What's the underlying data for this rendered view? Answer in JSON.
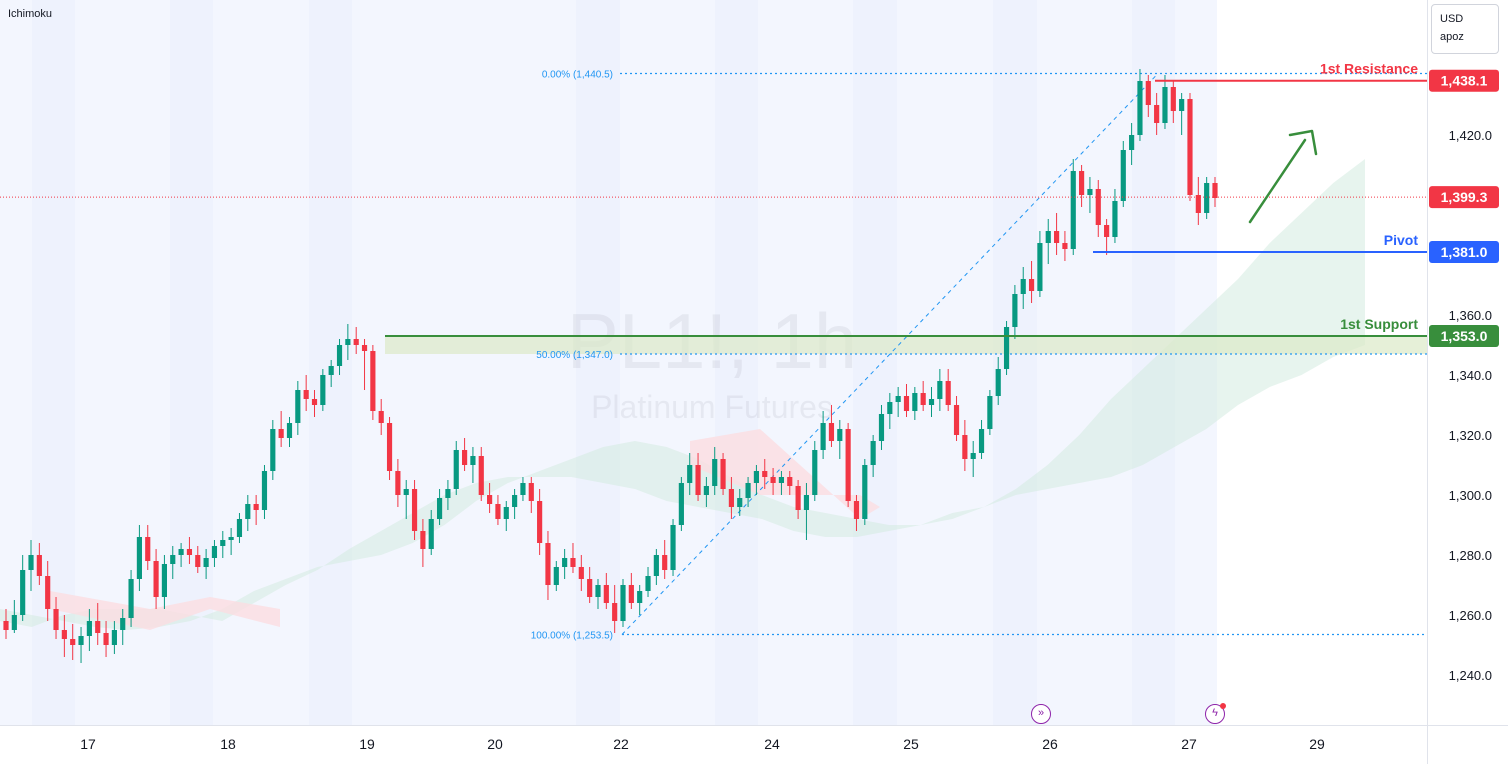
{
  "indicator_label": "Ichimoku",
  "currency": {
    "code": "USD",
    "sub": "apoz"
  },
  "watermark": {
    "symbol": "PL1!, 1h",
    "name": "Platinum Futures"
  },
  "colors": {
    "up": "#089981",
    "down": "#f23645",
    "resistance": "#f23645",
    "pivot": "#2962ff",
    "support": "#388e3c",
    "fib": "#2196f3",
    "arrow": "#388e3c",
    "session_band": "#eef2fd",
    "cloud_bull": "#d4ebe0",
    "cloud_bear": "#fbdde1",
    "grid_text": "#131722"
  },
  "icons": {
    "dividend": "arrow-circle-icon",
    "earnings": "lightning-circle-icon"
  },
  "chart_data": {
    "type": "candlestick",
    "symbol": "PL1!",
    "interval": "1h",
    "y_axis": {
      "ticks": [
        1240.0,
        1260.0,
        1280.0,
        1300.0,
        1320.0,
        1340.0,
        1360.0,
        1420.0
      ],
      "tick_labels": [
        "1,240.0",
        "1,260.0",
        "1,280.0",
        "1,300.0",
        "1,320.0",
        "1,340.0",
        "1,360.0",
        "1,420.0"
      ],
      "range": [
        1225,
        1460
      ]
    },
    "x_axis": {
      "tick_labels": [
        "17",
        "18",
        "19",
        "20",
        "22",
        "24",
        "25",
        "26",
        "27",
        "29"
      ]
    },
    "levels": [
      {
        "name": "1st Resistance",
        "value": 1438.1,
        "label": "1,438.1",
        "color": "#f23645"
      },
      {
        "name": "Pivot",
        "value": 1381.0,
        "label": "1,381.0",
        "color": "#2962ff"
      },
      {
        "name": "1st Support",
        "value": 1353.0,
        "label": "1,353.0",
        "color": "#388e3c"
      }
    ],
    "last_price": {
      "value": 1399.3,
      "label": "1,399.3"
    },
    "fibonacci": [
      {
        "label": "0.00% (1,440.5)",
        "value": 1440.5
      },
      {
        "label": "50.00% (1,347.0)",
        "value": 1347.0
      },
      {
        "label": "100.00% (1,253.5)",
        "value": 1253.5
      }
    ],
    "candles": [
      [
        1258,
        1262,
        1252,
        1255
      ],
      [
        1255,
        1265,
        1254,
        1260
      ],
      [
        1260,
        1280,
        1258,
        1275
      ],
      [
        1275,
        1285,
        1268,
        1280
      ],
      [
        1280,
        1284,
        1270,
        1273
      ],
      [
        1273,
        1278,
        1258,
        1262
      ],
      [
        1262,
        1266,
        1252,
        1255
      ],
      [
        1255,
        1260,
        1246,
        1252
      ],
      [
        1252,
        1257,
        1245,
        1250
      ],
      [
        1250,
        1256,
        1244,
        1253
      ],
      [
        1253,
        1262,
        1248,
        1258
      ],
      [
        1258,
        1264,
        1250,
        1254
      ],
      [
        1254,
        1258,
        1246,
        1250
      ],
      [
        1250,
        1258,
        1247,
        1255
      ],
      [
        1255,
        1262,
        1250,
        1259
      ],
      [
        1259,
        1275,
        1256,
        1272
      ],
      [
        1272,
        1290,
        1268,
        1286
      ],
      [
        1286,
        1290,
        1275,
        1278
      ],
      [
        1278,
        1282,
        1262,
        1266
      ],
      [
        1266,
        1280,
        1262,
        1277
      ],
      [
        1277,
        1283,
        1272,
        1280
      ],
      [
        1280,
        1284,
        1276,
        1282
      ],
      [
        1282,
        1286,
        1277,
        1280
      ],
      [
        1280,
        1283,
        1274,
        1276
      ],
      [
        1276,
        1282,
        1272,
        1279
      ],
      [
        1279,
        1285,
        1276,
        1283
      ],
      [
        1283,
        1288,
        1279,
        1285
      ],
      [
        1285,
        1289,
        1280,
        1286
      ],
      [
        1286,
        1294,
        1284,
        1292
      ],
      [
        1292,
        1300,
        1288,
        1297
      ],
      [
        1297,
        1300,
        1290,
        1295
      ],
      [
        1295,
        1310,
        1292,
        1308
      ],
      [
        1308,
        1325,
        1305,
        1322
      ],
      [
        1322,
        1328,
        1316,
        1319
      ],
      [
        1319,
        1326,
        1316,
        1324
      ],
      [
        1324,
        1338,
        1320,
        1335
      ],
      [
        1335,
        1340,
        1328,
        1332
      ],
      [
        1332,
        1335,
        1326,
        1330
      ],
      [
        1330,
        1342,
        1328,
        1340
      ],
      [
        1340,
        1345,
        1336,
        1343
      ],
      [
        1343,
        1352,
        1340,
        1350
      ],
      [
        1350,
        1357,
        1345,
        1352
      ],
      [
        1352,
        1356,
        1347,
        1350
      ],
      [
        1350,
        1352,
        1335,
        1348
      ],
      [
        1348,
        1350,
        1325,
        1328
      ],
      [
        1328,
        1332,
        1320,
        1324
      ],
      [
        1324,
        1326,
        1305,
        1308
      ],
      [
        1308,
        1312,
        1296,
        1300
      ],
      [
        1300,
        1305,
        1292,
        1302
      ],
      [
        1302,
        1305,
        1285,
        1288
      ],
      [
        1288,
        1292,
        1276,
        1282
      ],
      [
        1282,
        1295,
        1280,
        1292
      ],
      [
        1292,
        1302,
        1290,
        1299
      ],
      [
        1299,
        1305,
        1295,
        1302
      ],
      [
        1302,
        1318,
        1300,
        1315
      ],
      [
        1315,
        1319,
        1308,
        1310
      ],
      [
        1310,
        1316,
        1304,
        1313
      ],
      [
        1313,
        1316,
        1298,
        1300
      ],
      [
        1300,
        1304,
        1294,
        1297
      ],
      [
        1297,
        1300,
        1290,
        1292
      ],
      [
        1292,
        1298,
        1288,
        1296
      ],
      [
        1296,
        1302,
        1292,
        1300
      ],
      [
        1300,
        1306,
        1298,
        1304
      ],
      [
        1304,
        1306,
        1294,
        1298
      ],
      [
        1298,
        1302,
        1280,
        1284
      ],
      [
        1284,
        1288,
        1265,
        1270
      ],
      [
        1270,
        1278,
        1268,
        1276
      ],
      [
        1276,
        1282,
        1272,
        1279
      ],
      [
        1279,
        1284,
        1274,
        1276
      ],
      [
        1276,
        1280,
        1268,
        1272
      ],
      [
        1272,
        1276,
        1264,
        1266
      ],
      [
        1266,
        1272,
        1262,
        1270
      ],
      [
        1270,
        1274,
        1262,
        1264
      ],
      [
        1264,
        1270,
        1254,
        1258
      ],
      [
        1258,
        1272,
        1256,
        1270
      ],
      [
        1270,
        1274,
        1262,
        1264
      ],
      [
        1264,
        1270,
        1260,
        1268
      ],
      [
        1268,
        1276,
        1266,
        1273
      ],
      [
        1273,
        1282,
        1270,
        1280
      ],
      [
        1280,
        1285,
        1272,
        1275
      ],
      [
        1275,
        1292,
        1273,
        1290
      ],
      [
        1290,
        1306,
        1288,
        1304
      ],
      [
        1304,
        1314,
        1300,
        1310
      ],
      [
        1310,
        1314,
        1298,
        1300
      ],
      [
        1300,
        1306,
        1296,
        1303
      ],
      [
        1303,
        1316,
        1300,
        1312
      ],
      [
        1312,
        1314,
        1300,
        1302
      ],
      [
        1302,
        1306,
        1292,
        1296
      ],
      [
        1296,
        1302,
        1293,
        1299
      ],
      [
        1299,
        1306,
        1296,
        1304
      ],
      [
        1304,
        1310,
        1300,
        1308
      ],
      [
        1308,
        1312,
        1302,
        1306
      ],
      [
        1306,
        1309,
        1300,
        1304
      ],
      [
        1304,
        1308,
        1300,
        1306
      ],
      [
        1306,
        1308,
        1300,
        1303
      ],
      [
        1303,
        1305,
        1292,
        1295
      ],
      [
        1295,
        1304,
        1285,
        1300
      ],
      [
        1300,
        1318,
        1298,
        1315
      ],
      [
        1315,
        1328,
        1312,
        1324
      ],
      [
        1324,
        1330,
        1316,
        1318
      ],
      [
        1318,
        1325,
        1312,
        1322
      ],
      [
        1322,
        1324,
        1296,
        1298
      ],
      [
        1298,
        1300,
        1288,
        1292
      ],
      [
        1292,
        1312,
        1290,
        1310
      ],
      [
        1310,
        1320,
        1306,
        1318
      ],
      [
        1318,
        1330,
        1315,
        1327
      ],
      [
        1327,
        1334,
        1322,
        1331
      ],
      [
        1331,
        1336,
        1326,
        1333
      ],
      [
        1333,
        1337,
        1326,
        1328
      ],
      [
        1328,
        1336,
        1325,
        1334
      ],
      [
        1334,
        1338,
        1328,
        1330
      ],
      [
        1330,
        1336,
        1326,
        1332
      ],
      [
        1332,
        1342,
        1328,
        1338
      ],
      [
        1338,
        1342,
        1328,
        1330
      ],
      [
        1330,
        1333,
        1318,
        1320
      ],
      [
        1320,
        1325,
        1308,
        1312
      ],
      [
        1312,
        1318,
        1306,
        1314
      ],
      [
        1314,
        1325,
        1312,
        1322
      ],
      [
        1322,
        1335,
        1320,
        1333
      ],
      [
        1333,
        1346,
        1330,
        1342
      ],
      [
        1342,
        1358,
        1340,
        1356
      ],
      [
        1356,
        1370,
        1352,
        1367
      ],
      [
        1367,
        1376,
        1362,
        1372
      ],
      [
        1372,
        1378,
        1364,
        1368
      ],
      [
        1368,
        1388,
        1366,
        1384
      ],
      [
        1384,
        1392,
        1377,
        1388
      ],
      [
        1388,
        1394,
        1380,
        1384
      ],
      [
        1384,
        1388,
        1378,
        1382
      ],
      [
        1382,
        1412,
        1380,
        1408
      ],
      [
        1408,
        1410,
        1396,
        1400
      ],
      [
        1400,
        1406,
        1394,
        1402
      ],
      [
        1402,
        1405,
        1386,
        1390
      ],
      [
        1390,
        1392,
        1380,
        1386
      ],
      [
        1386,
        1402,
        1384,
        1398
      ],
      [
        1398,
        1418,
        1396,
        1415
      ],
      [
        1415,
        1424,
        1410,
        1420
      ],
      [
        1420,
        1442,
        1418,
        1438
      ],
      [
        1438,
        1440,
        1426,
        1430
      ],
      [
        1430,
        1434,
        1420,
        1424
      ],
      [
        1424,
        1440,
        1422,
        1436
      ],
      [
        1436,
        1438,
        1424,
        1428
      ],
      [
        1428,
        1434,
        1420,
        1432
      ],
      [
        1432,
        1434,
        1398,
        1400
      ],
      [
        1400,
        1406,
        1390,
        1394
      ],
      [
        1394,
        1406,
        1392,
        1404
      ],
      [
        1404,
        1406,
        1396,
        1399
      ]
    ],
    "cloud_span_a": [
      1262,
      1260,
      1258,
      1256,
      1255,
      1256,
      1258,
      1262,
      1268,
      1272,
      1276,
      1278,
      1280,
      1284,
      1290,
      1298,
      1304,
      1308,
      1312,
      1316,
      1318,
      1316,
      1312,
      1306,
      1300,
      1296,
      1294,
      1292,
      1290,
      1290,
      1292,
      1296,
      1302,
      1310,
      1320,
      1332,
      1342,
      1352,
      1362,
      1372,
      1384,
      1394,
      1404,
      1412
    ],
    "cloud_span_b": [
      1258,
      1256,
      1260,
      1262,
      1262,
      1262,
      1260,
      1258,
      1264,
      1270,
      1275,
      1282,
      1288,
      1294,
      1300,
      1304,
      1306,
      1306,
      1306,
      1304,
      1302,
      1298,
      1296,
      1294,
      1292,
      1288,
      1286,
      1286,
      1288,
      1290,
      1294,
      1296,
      1300,
      1302,
      1304,
      1306,
      1310,
      1316,
      1322,
      1330,
      1336,
      1340,
      1346,
      1350
    ]
  }
}
